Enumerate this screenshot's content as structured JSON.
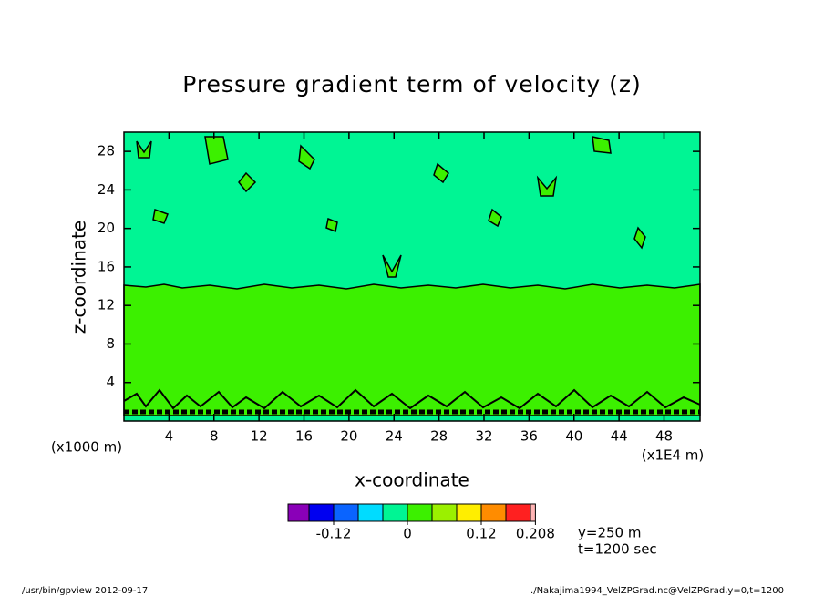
{
  "chart_data": {
    "type": "contour",
    "title": "Pressure gradient term of velocity (z)",
    "x_label": "x-coordinate",
    "y_label": "z-coordinate",
    "x_unit": "(x1E4 m)",
    "y_unit": "(x1000 m)",
    "xlim": [
      0,
      51.2
    ],
    "ylim": [
      0,
      30
    ],
    "xticks": [
      4,
      8,
      12,
      16,
      20,
      24,
      28,
      32,
      36,
      40,
      44,
      48
    ],
    "yticks": [
      4,
      8,
      12,
      16,
      20,
      24,
      28
    ],
    "colorbar": {
      "levels": [
        -0.16,
        -0.12,
        -0.08,
        -0.04,
        0,
        0.04,
        0.08,
        0.12,
        0.16,
        0.2,
        0.208
      ],
      "colors": [
        "#8a00b8",
        "#0000f0",
        "#0a64ff",
        "#00dcff",
        "#00f594",
        "#3cf000",
        "#9bf000",
        "#ffee00",
        "#ff8c00",
        "#ff2020",
        "#ffb4b4"
      ],
      "ticks": [
        -0.12,
        0,
        0.12,
        0.208
      ]
    },
    "annotations": [
      "y=250 m",
      "t=1200 sec"
    ],
    "footer_left": "/usr/bin/gpview  2012-09-17",
    "footer_right": "./Nakajima1994_VelZPGrad.nc@VelZPGrad,y=0,t=1200"
  }
}
